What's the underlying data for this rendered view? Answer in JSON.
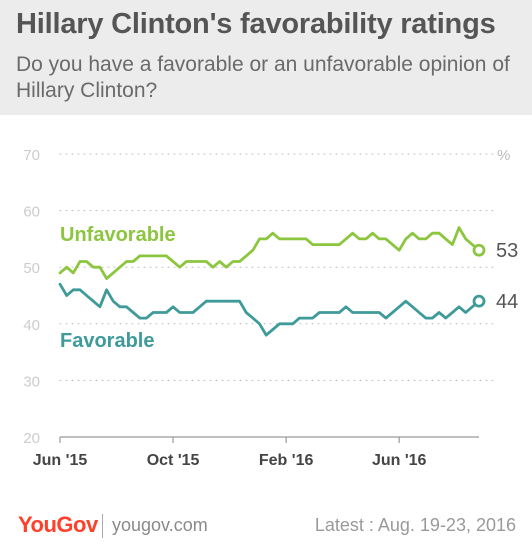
{
  "header": {
    "title": "Hillary Clinton's favorability ratings",
    "subtitle": "Do you have a favorable or an unfavorable opinion of Hillary Clinton?"
  },
  "footer": {
    "logo": "YouGov",
    "site": "yougov.com",
    "latest": "Latest : Aug. 19-23, 2016"
  },
  "colors": {
    "unfavorable": "#8cc63f",
    "favorable": "#3f9a9a",
    "grid": "#bbbbbb",
    "axis_text": "#cccccc",
    "x_text": "#444444"
  },
  "chart_data": {
    "type": "line",
    "unit_label": "%",
    "ylim": [
      20,
      70
    ],
    "yticks": [
      20,
      30,
      40,
      50,
      60,
      70
    ],
    "grid": true,
    "x_range": [
      0,
      63
    ],
    "x_ticks": [
      {
        "label": "Jun '15",
        "x": 0
      },
      {
        "label": "Oct '15",
        "x": 17
      },
      {
        "label": "Feb '16",
        "x": 34
      },
      {
        "label": "Jun '16",
        "x": 51
      }
    ],
    "series": [
      {
        "name": "Unfavorable",
        "color": "#8cc63f",
        "end_value": "53",
        "points": [
          [
            0,
            49
          ],
          [
            1,
            50
          ],
          [
            2,
            49
          ],
          [
            3,
            51
          ],
          [
            4,
            51
          ],
          [
            5,
            50
          ],
          [
            6,
            50
          ],
          [
            7,
            48
          ],
          [
            8,
            49
          ],
          [
            9,
            50
          ],
          [
            10,
            51
          ],
          [
            11,
            51
          ],
          [
            12,
            52
          ],
          [
            13,
            52
          ],
          [
            14,
            52
          ],
          [
            15,
            52
          ],
          [
            16,
            52
          ],
          [
            17,
            51
          ],
          [
            18,
            50
          ],
          [
            19,
            51
          ],
          [
            20,
            51
          ],
          [
            21,
            51
          ],
          [
            22,
            51
          ],
          [
            23,
            50
          ],
          [
            24,
            51
          ],
          [
            25,
            50
          ],
          [
            26,
            51
          ],
          [
            27,
            51
          ],
          [
            28,
            52
          ],
          [
            29,
            53
          ],
          [
            30,
            55
          ],
          [
            31,
            55
          ],
          [
            32,
            56
          ],
          [
            33,
            55
          ],
          [
            34,
            55
          ],
          [
            35,
            55
          ],
          [
            36,
            55
          ],
          [
            37,
            55
          ],
          [
            38,
            54
          ],
          [
            39,
            54
          ],
          [
            40,
            54
          ],
          [
            41,
            54
          ],
          [
            42,
            54
          ],
          [
            43,
            55
          ],
          [
            44,
            56
          ],
          [
            45,
            55
          ],
          [
            46,
            55
          ],
          [
            47,
            56
          ],
          [
            48,
            55
          ],
          [
            49,
            55
          ],
          [
            50,
            54
          ],
          [
            51,
            53
          ],
          [
            52,
            55
          ],
          [
            53,
            56
          ],
          [
            54,
            55
          ],
          [
            55,
            55
          ],
          [
            56,
            56
          ],
          [
            57,
            56
          ],
          [
            58,
            55
          ],
          [
            59,
            54
          ],
          [
            60,
            57
          ],
          [
            61,
            55
          ],
          [
            62,
            54
          ],
          [
            63,
            53
          ]
        ]
      },
      {
        "name": "Favorable",
        "color": "#3f9a9a",
        "end_value": "44",
        "points": [
          [
            0,
            47
          ],
          [
            1,
            45
          ],
          [
            2,
            46
          ],
          [
            3,
            46
          ],
          [
            4,
            45
          ],
          [
            5,
            44
          ],
          [
            6,
            43
          ],
          [
            7,
            46
          ],
          [
            8,
            44
          ],
          [
            9,
            43
          ],
          [
            10,
            43
          ],
          [
            11,
            42
          ],
          [
            12,
            41
          ],
          [
            13,
            41
          ],
          [
            14,
            42
          ],
          [
            15,
            42
          ],
          [
            16,
            42
          ],
          [
            17,
            43
          ],
          [
            18,
            42
          ],
          [
            19,
            42
          ],
          [
            20,
            42
          ],
          [
            21,
            43
          ],
          [
            22,
            44
          ],
          [
            23,
            44
          ],
          [
            24,
            44
          ],
          [
            25,
            44
          ],
          [
            26,
            44
          ],
          [
            27,
            44
          ],
          [
            28,
            42
          ],
          [
            29,
            41
          ],
          [
            30,
            40
          ],
          [
            31,
            38
          ],
          [
            32,
            39
          ],
          [
            33,
            40
          ],
          [
            34,
            40
          ],
          [
            35,
            40
          ],
          [
            36,
            41
          ],
          [
            37,
            41
          ],
          [
            38,
            41
          ],
          [
            39,
            42
          ],
          [
            40,
            42
          ],
          [
            41,
            42
          ],
          [
            42,
            42
          ],
          [
            43,
            43
          ],
          [
            44,
            42
          ],
          [
            45,
            42
          ],
          [
            46,
            42
          ],
          [
            47,
            42
          ],
          [
            48,
            42
          ],
          [
            49,
            41
          ],
          [
            50,
            42
          ],
          [
            51,
            43
          ],
          [
            52,
            44
          ],
          [
            53,
            43
          ],
          [
            54,
            42
          ],
          [
            55,
            41
          ],
          [
            56,
            41
          ],
          [
            57,
            42
          ],
          [
            58,
            41
          ],
          [
            59,
            42
          ],
          [
            60,
            43
          ],
          [
            61,
            42
          ],
          [
            62,
            43
          ],
          [
            63,
            44
          ]
        ]
      }
    ]
  }
}
